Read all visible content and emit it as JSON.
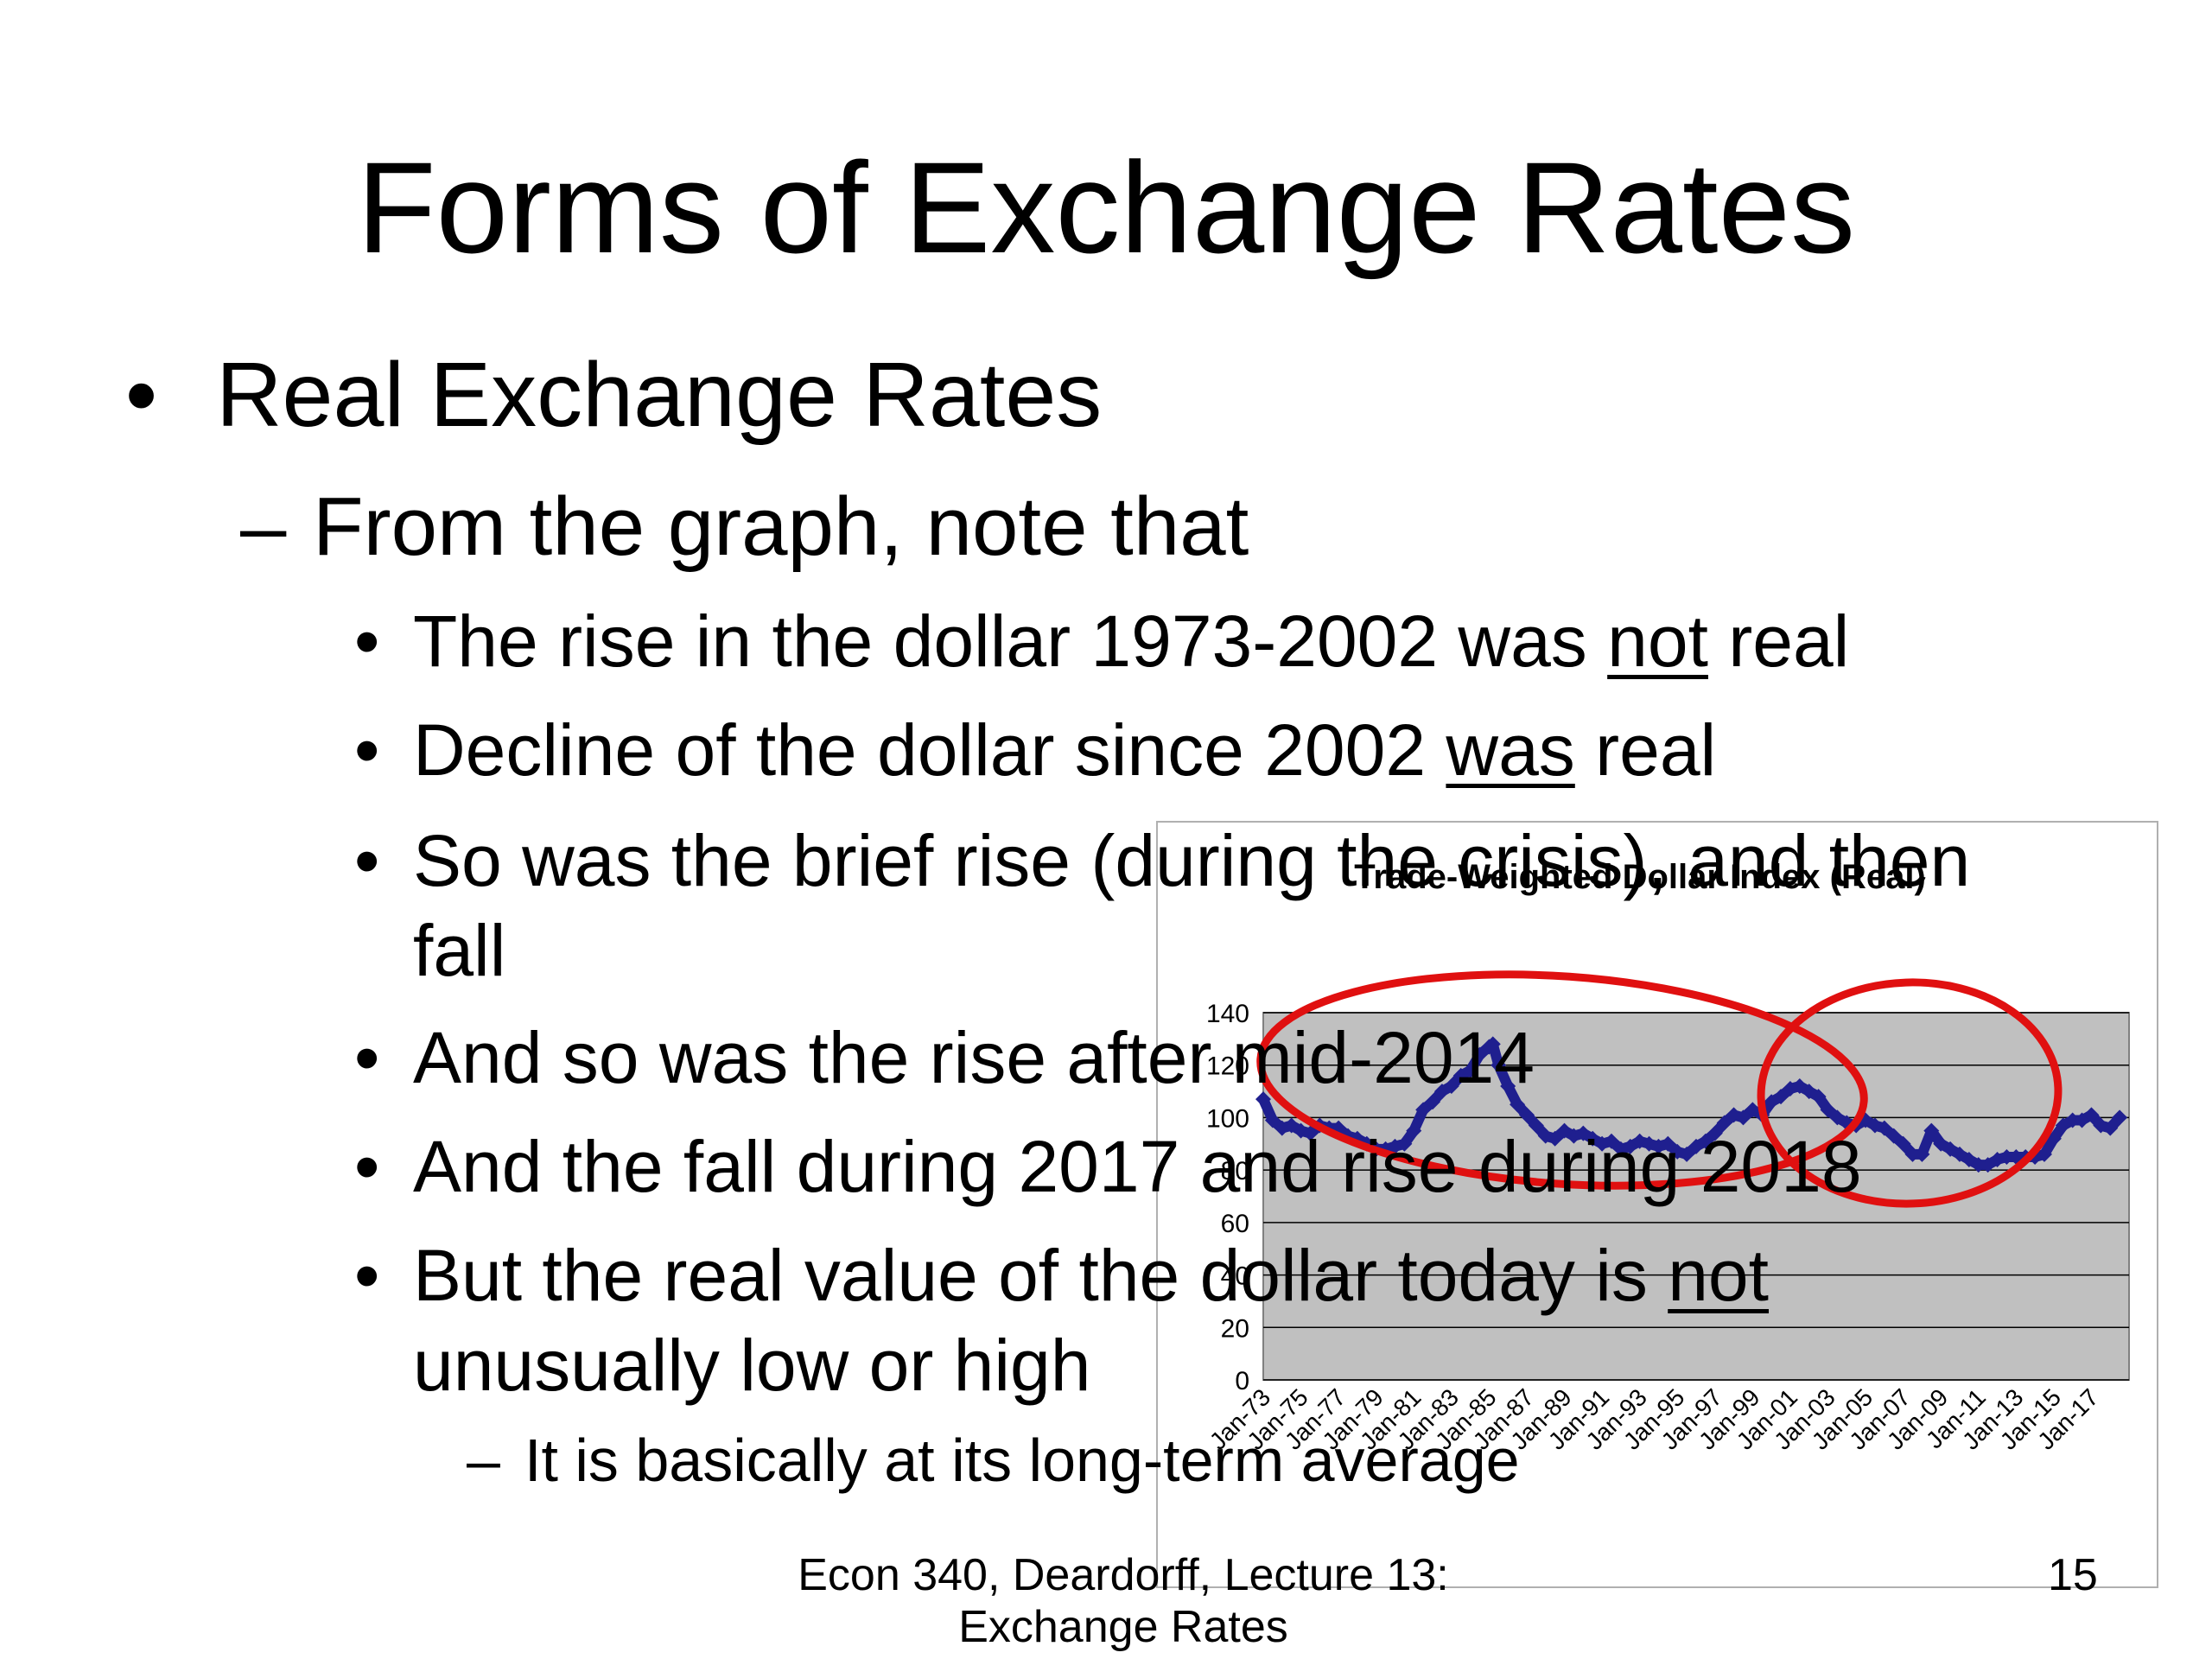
{
  "slide": {
    "title": "Forms of Exchange Rates",
    "level1": "Real Exchange Rates",
    "level2": "From the graph, note that",
    "bullets": {
      "b1_pre": "The rise in the dollar 1973-2002 was ",
      "b1_u": "not",
      "b1_post": " real",
      "b2_pre": "Decline of the dollar since 2002 ",
      "b2_u": "was",
      "b2_post": " real",
      "b3_line1": "So was the brief rise (during the crisis), and then",
      "b3_line2": "fall",
      "b4": "And so was the rise after mid-2014",
      "b5": "And the fall during 2017 and rise during 2018",
      "b6_pre": "But the real value of the dollar today is ",
      "b6_u": "not",
      "b6_line2": "unusually low or high"
    },
    "level4": "It is basically at its long-term average",
    "footer_line1": "Econ 340, Deardorff, Lecture 13:",
    "footer_line2": "Exchange Rates",
    "page_number": "15",
    "bullet_char": "•",
    "dash_char": "–"
  },
  "chart_data": {
    "type": "line",
    "title": "Trade-Weighted Dollar Index (Real)",
    "xlabel": "",
    "ylabel": "",
    "ylim": [
      0,
      140
    ],
    "yticks": [
      0,
      20,
      40,
      60,
      80,
      100,
      120,
      140
    ],
    "xticks": [
      "Jan-73",
      "Jan-75",
      "Jan-77",
      "Jan-79",
      "Jan-81",
      "Jan-83",
      "Jan-85",
      "Jan-87",
      "Jan-89",
      "Jan-91",
      "Jan-93",
      "Jan-95",
      "Jan-97",
      "Jan-99",
      "Jan-01",
      "Jan-03",
      "Jan-05",
      "Jan-07",
      "Jan-09",
      "Jan-11",
      "Jan-13",
      "Jan-15",
      "Jan-17"
    ],
    "grid": true,
    "legend": "none",
    "series": [
      {
        "color": "#1f1f8f",
        "x": [
          1973.0,
          1973.5,
          1974.0,
          1974.5,
          1975.0,
          1975.5,
          1976.0,
          1976.5,
          1977.0,
          1977.5,
          1978.0,
          1978.5,
          1979.0,
          1979.5,
          1980.0,
          1980.5,
          1981.0,
          1981.5,
          1982.0,
          1982.5,
          1983.0,
          1983.5,
          1984.0,
          1984.5,
          1985.0,
          1985.2,
          1985.5,
          1986.0,
          1986.5,
          1987.0,
          1987.5,
          1988.0,
          1988.5,
          1989.0,
          1989.5,
          1990.0,
          1990.5,
          1991.0,
          1991.5,
          1992.0,
          1992.5,
          1993.0,
          1993.5,
          1994.0,
          1994.5,
          1995.0,
          1995.5,
          1996.0,
          1996.5,
          1997.0,
          1997.5,
          1998.0,
          1998.5,
          1999.0,
          1999.5,
          2000.0,
          2000.5,
          2001.0,
          2001.5,
          2002.0,
          2002.5,
          2003.0,
          2003.5,
          2004.0,
          2004.5,
          2005.0,
          2005.5,
          2006.0,
          2006.5,
          2007.0,
          2007.5,
          2008.0,
          2008.5,
          2009.0,
          2009.5,
          2010.0,
          2010.5,
          2011.0,
          2011.5,
          2012.0,
          2012.5,
          2013.0,
          2013.5,
          2014.0,
          2014.5,
          2015.0,
          2015.5,
          2016.0,
          2016.5,
          2017.0,
          2017.5,
          2018.0,
          2018.5
        ],
        "y": [
          107,
          99,
          96,
          97,
          95,
          94,
          97,
          96,
          96,
          93,
          92,
          90,
          88,
          88,
          89,
          90,
          95,
          103,
          106,
          110,
          112,
          116,
          118,
          124,
          127,
          128,
          120,
          112,
          105,
          101,
          97,
          93,
          92,
          95,
          93,
          94,
          92,
          90,
          91,
          88,
          89,
          91,
          90,
          89,
          90,
          87,
          86,
          89,
          91,
          94,
          98,
          101,
          100,
          103,
          101,
          106,
          108,
          111,
          112,
          110,
          108,
          103,
          100,
          98,
          97,
          99,
          97,
          96,
          93,
          90,
          86,
          86,
          95,
          90,
          88,
          86,
          84,
          82,
          82,
          84,
          85,
          85,
          85,
          85,
          86,
          92,
          97,
          99,
          99,
          101,
          97,
          96,
          100
        ]
      }
    ],
    "annotations": [
      "red ellipse around Jan-74 to Jan-04",
      "red ellipse around Jan-01 to Jan-15"
    ]
  }
}
